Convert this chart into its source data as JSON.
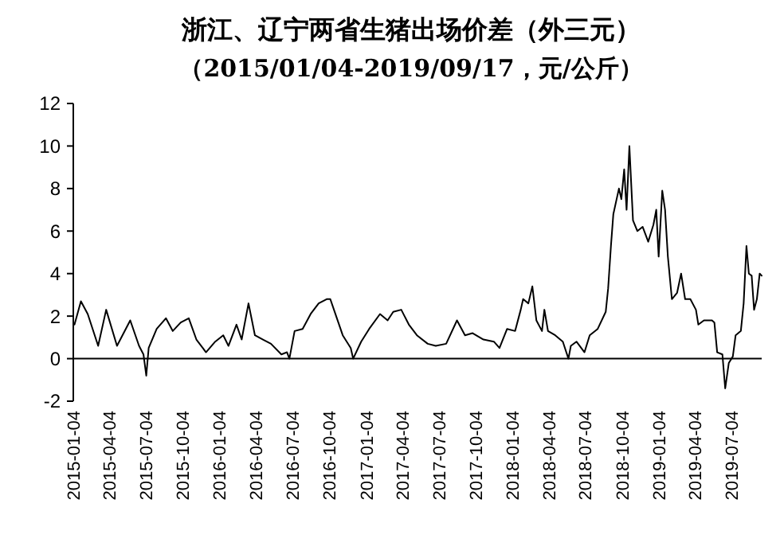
{
  "chart_data": {
    "type": "line",
    "title": "浙江、辽宁两省生猪出场价差（外三元）",
    "subtitle": "（2015/01/04-2019/09/17，元/公斤）",
    "x": [
      "2015-01-07",
      "2015-01-23",
      "2015-02-09",
      "2015-03-07",
      "2015-03-27",
      "2015-04-23",
      "2015-05-26",
      "2015-06-17",
      "2015-06-28",
      "2015-07-05",
      "2015-07-11",
      "2015-07-31",
      "2015-08-23",
      "2015-09-09",
      "2015-09-29",
      "2015-10-19",
      "2015-11-07",
      "2015-12-01",
      "2015-12-24",
      "2016-01-13",
      "2016-01-26",
      "2016-02-15",
      "2016-02-28",
      "2016-03-16",
      "2016-04-01",
      "2016-04-21",
      "2016-05-11",
      "2016-06-06",
      "2016-06-20",
      "2016-06-26",
      "2016-07-09",
      "2016-07-29",
      "2016-08-18",
      "2016-09-07",
      "2016-09-27",
      "2016-10-06",
      "2016-10-17",
      "2016-11-06",
      "2016-11-26",
      "2016-12-02",
      "2016-12-22",
      "2017-01-11",
      "2017-02-07",
      "2017-02-26",
      "2017-03-12",
      "2017-04-01",
      "2017-04-20",
      "2017-05-10",
      "2017-06-06",
      "2017-06-26",
      "2017-07-22",
      "2017-08-18",
      "2017-09-07",
      "2017-09-26",
      "2017-10-23",
      "2017-11-18",
      "2017-12-02",
      "2017-12-21",
      "2018-01-10",
      "2018-01-24",
      "2018-01-30",
      "2018-02-12",
      "2018-02-22",
      "2018-03-04",
      "2018-03-18",
      "2018-03-24",
      "2018-04-02",
      "2018-04-20",
      "2018-05-09",
      "2018-05-23",
      "2018-05-29",
      "2018-06-12",
      "2018-07-02",
      "2018-07-15",
      "2018-08-04",
      "2018-08-24",
      "2018-08-30",
      "2018-09-06",
      "2018-09-12",
      "2018-09-26",
      "2018-10-02",
      "2018-10-09",
      "2018-10-15",
      "2018-10-22",
      "2018-10-31",
      "2018-11-11",
      "2018-11-24",
      "2018-12-08",
      "2018-12-21",
      "2018-12-28",
      "2019-01-03",
      "2019-01-12",
      "2019-01-19",
      "2019-01-26",
      "2019-02-05",
      "2019-02-18",
      "2019-02-28",
      "2019-03-10",
      "2019-03-23",
      "2019-04-06",
      "2019-04-12",
      "2019-04-26",
      "2019-05-16",
      "2019-05-22",
      "2019-05-29",
      "2019-06-11",
      "2019-06-18",
      "2019-06-27",
      "2019-07-07",
      "2019-07-14",
      "2019-07-27",
      "2019-08-03",
      "2019-08-10",
      "2019-08-16",
      "2019-08-23",
      "2019-08-29",
      "2019-09-05",
      "2019-09-12",
      "2019-09-17"
    ],
    "series": [
      {
        "color": "#000000",
        "values": [
          1.6,
          2.7,
          2.1,
          0.6,
          2.3,
          0.6,
          1.8,
          0.6,
          0.2,
          -0.8,
          0.5,
          1.4,
          1.9,
          1.3,
          1.7,
          1.9,
          0.9,
          0.3,
          0.8,
          1.1,
          0.6,
          1.6,
          0.9,
          2.6,
          1.1,
          0.9,
          0.7,
          0.2,
          0.3,
          0,
          1.3,
          1.4,
          2.1,
          2.6,
          2.8,
          2.8,
          2.2,
          1.1,
          0.5,
          0,
          0.8,
          1.4,
          2.1,
          1.8,
          2.2,
          2.3,
          1.6,
          1.1,
          0.7,
          0.6,
          0.7,
          1.8,
          1.1,
          1.2,
          0.9,
          0.8,
          0.5,
          1.4,
          1.3,
          2.3,
          2.8,
          2.6,
          3.4,
          1.8,
          1.3,
          2.3,
          1.3,
          1.1,
          0.8,
          0,
          0.6,
          0.8,
          0.3,
          1.1,
          1.4,
          2.2,
          3.3,
          5.3,
          6.8,
          8,
          7.5,
          8.9,
          7,
          10,
          6.5,
          6,
          6.2,
          5.5,
          6.3,
          7,
          4.8,
          7.9,
          7,
          4.8,
          2.8,
          3.1,
          4,
          2.8,
          2.8,
          2.3,
          1.6,
          1.8,
          1.8,
          1.7,
          0.3,
          0.2,
          -1.4,
          -0.2,
          0.1,
          1.1,
          1.3,
          2.6,
          5.3,
          4,
          3.9,
          2.3,
          2.8,
          4,
          3.9
        ]
      }
    ],
    "xlim": [
      "2015-01-04",
      "2019-09-17"
    ],
    "xticks": [
      "2015-01-04",
      "2015-04-04",
      "2015-07-04",
      "2015-10-04",
      "2016-01-04",
      "2016-04-04",
      "2016-07-04",
      "2016-10-04",
      "2017-01-04",
      "2017-04-04",
      "2017-07-04",
      "2017-10-04",
      "2018-01-04",
      "2018-04-04",
      "2018-07-04",
      "2018-10-04",
      "2019-01-04",
      "2019-04-04",
      "2019-07-04"
    ],
    "ylim": [
      -2,
      12
    ],
    "yticks": [
      -2,
      0,
      2,
      4,
      6,
      8,
      10,
      12
    ],
    "marker": "none",
    "line_style": "solid"
  }
}
